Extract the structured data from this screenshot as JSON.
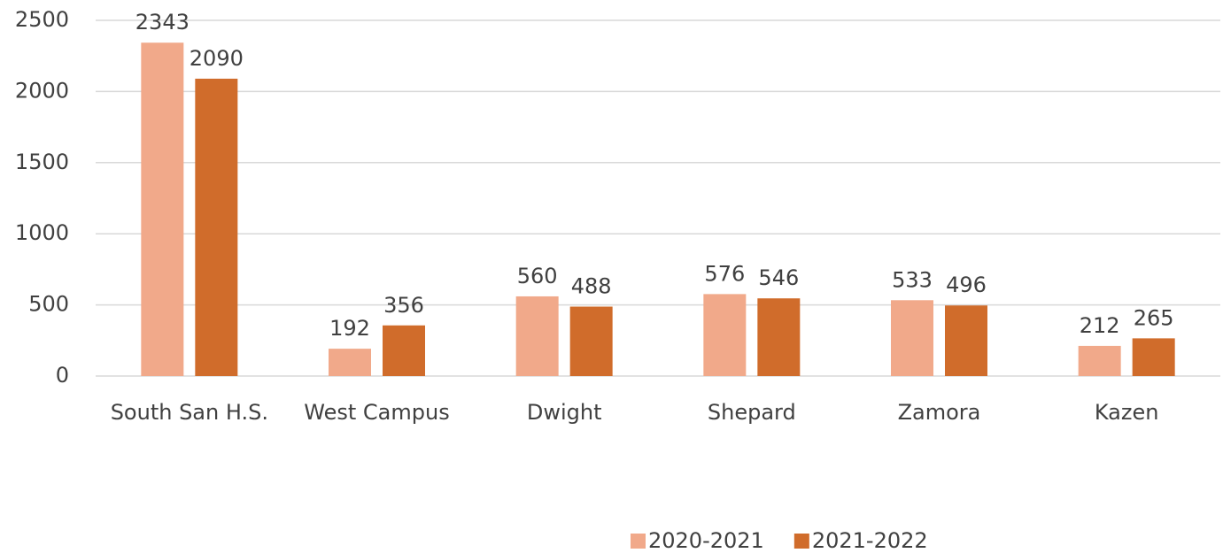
{
  "chart_data": {
    "type": "bar",
    "categories": [
      "South San H.S.",
      "West Campus",
      "Dwight",
      "Shepard",
      "Zamora",
      "Kazen"
    ],
    "series": [
      {
        "name": "2020-2021",
        "color": "#f1a98a",
        "values": [
          2343,
          192,
          560,
          576,
          533,
          212
        ]
      },
      {
        "name": "2021-2022",
        "color": "#d06c2b",
        "values": [
          2090,
          356,
          488,
          546,
          496,
          265
        ]
      }
    ],
    "ylim": [
      0,
      2500
    ],
    "yticks": [
      0,
      500,
      1000,
      1500,
      2000,
      2500
    ],
    "grid": true,
    "legend": "bottom"
  }
}
